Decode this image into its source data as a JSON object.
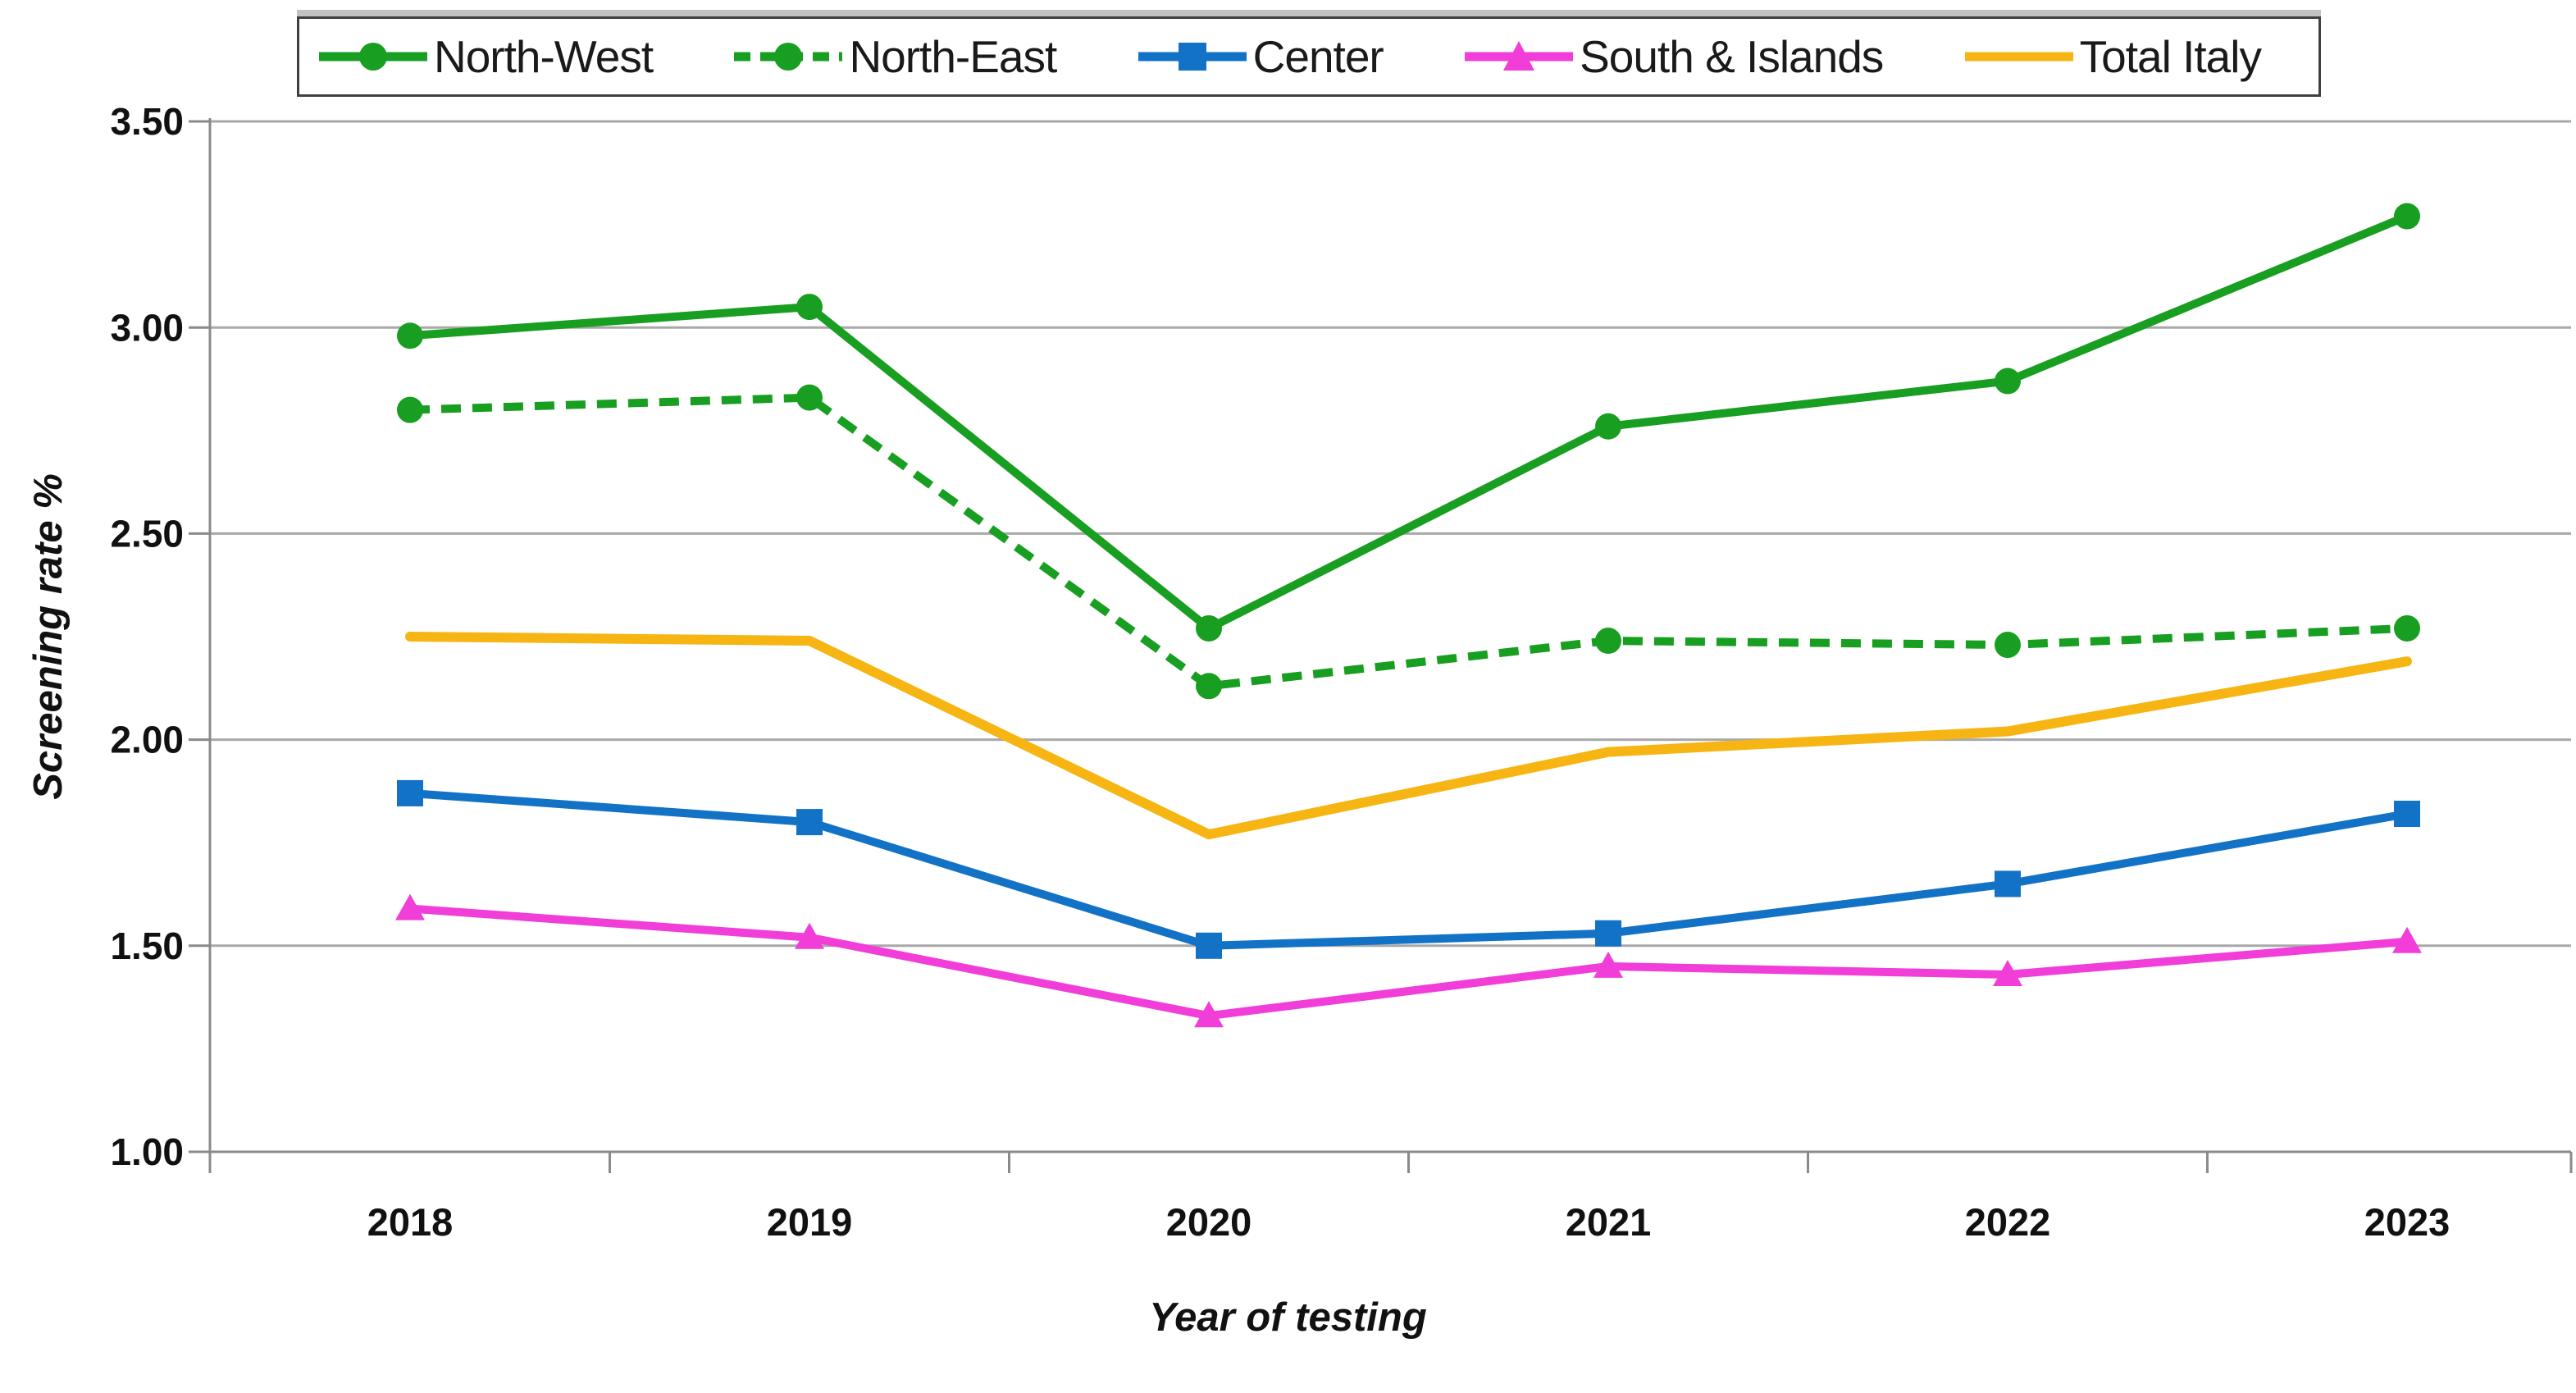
{
  "figure": {
    "y_axis_title": "Screening rate %",
    "x_axis_title": "Year of testing"
  },
  "colors": {
    "grid_line": "#A8A8A8",
    "axis_line": "#8A8A8A",
    "tick_text": "#111111",
    "legend_border": "#3F3F3F",
    "background": "#FFFFFF"
  },
  "chart_data": {
    "type": "line",
    "title": "",
    "xlabel": "Year of testing",
    "ylabel": "Screening rate %",
    "categories": [
      "2018",
      "2019",
      "2020",
      "2021",
      "2022",
      "2023"
    ],
    "ylim": [
      1.0,
      3.5
    ],
    "y_tick_values": [
      3.5,
      3.0,
      2.5,
      2.0,
      1.5,
      1.0
    ],
    "y_tick_labels": [
      "3.50",
      "3.00",
      "2.50",
      "2.00",
      "1.50",
      "1.00"
    ],
    "grid": "horizontal",
    "legend_position": "top",
    "series": [
      {
        "name": "North-West",
        "color": "#189E20",
        "dash": "solid",
        "marker": "circle",
        "values": [
          2.98,
          3.05,
          2.27,
          2.76,
          2.87,
          3.27
        ]
      },
      {
        "name": "North-East",
        "color": "#189E20",
        "dash": "dashed",
        "marker": "circle",
        "values": [
          2.8,
          2.83,
          2.13,
          2.24,
          2.23,
          2.27
        ]
      },
      {
        "name": "Center",
        "color": "#1272C6",
        "dash": "solid",
        "marker": "square",
        "values": [
          1.87,
          1.8,
          1.5,
          1.53,
          1.65,
          1.82
        ]
      },
      {
        "name": "South & Islands",
        "color": "#F23ED8",
        "dash": "solid",
        "marker": "triangle",
        "values": [
          1.59,
          1.52,
          1.33,
          1.45,
          1.43,
          1.51
        ]
      },
      {
        "name": "Total Italy",
        "color": "#F6B512",
        "dash": "solid",
        "marker": "none",
        "values": [
          2.25,
          2.24,
          1.77,
          1.97,
          2.02,
          2.19
        ]
      }
    ]
  }
}
